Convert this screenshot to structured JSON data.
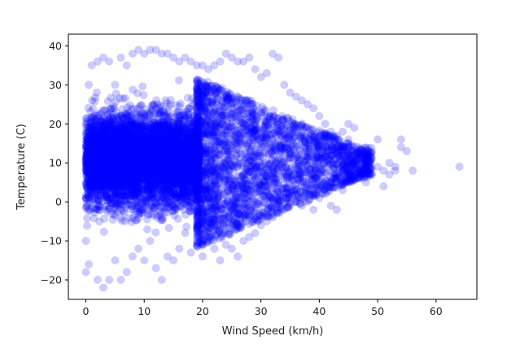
{
  "chart_data": {
    "type": "scatter",
    "title": "",
    "xlabel": "Wind Speed (km/h)",
    "ylabel": "Temperature (C)",
    "xlim": [
      -3,
      67
    ],
    "ylim": [
      -25,
      43
    ],
    "xticks": [
      0,
      10,
      20,
      30,
      40,
      50,
      60
    ],
    "yticks": [
      -20,
      -10,
      0,
      10,
      20,
      30,
      40
    ],
    "grid": false,
    "legend": "none",
    "marker_color": "#0000ff",
    "marker_alpha": 0.2,
    "series": [
      {
        "points": [
          [
            0,
            20
          ],
          [
            0,
            5
          ],
          [
            0,
            -10
          ],
          [
            0.5,
            30
          ],
          [
            0.5,
            -16
          ],
          [
            0,
            -18
          ],
          [
            1,
            35
          ],
          [
            2,
            36
          ],
          [
            3,
            37
          ],
          [
            4,
            36
          ],
          [
            2,
            -20
          ],
          [
            3,
            -22
          ],
          [
            4,
            -20
          ],
          [
            5,
            30
          ],
          [
            5,
            -15
          ],
          [
            6,
            37
          ],
          [
            6,
            -20
          ],
          [
            7,
            35
          ],
          [
            7,
            -18
          ],
          [
            8,
            38
          ],
          [
            8,
            -14
          ],
          [
            9,
            39
          ],
          [
            9,
            -12
          ],
          [
            10,
            38
          ],
          [
            10,
            -15
          ],
          [
            11,
            39
          ],
          [
            11,
            -10
          ],
          [
            12,
            39
          ],
          [
            12,
            -17
          ],
          [
            13,
            38
          ],
          [
            13,
            -20
          ],
          [
            14,
            38
          ],
          [
            14,
            -14
          ],
          [
            15,
            37
          ],
          [
            15,
            -15
          ],
          [
            16,
            36
          ],
          [
            16,
            -12
          ],
          [
            17,
            37
          ],
          [
            17,
            -8
          ],
          [
            18,
            36
          ],
          [
            18,
            -13
          ],
          [
            19,
            35
          ],
          [
            19,
            -10
          ],
          [
            20,
            35
          ],
          [
            20,
            -14
          ],
          [
            21,
            34
          ],
          [
            21,
            -10
          ],
          [
            22,
            35
          ],
          [
            22,
            -12
          ],
          [
            23,
            36
          ],
          [
            23,
            -15
          ],
          [
            24,
            38
          ],
          [
            24,
            -11
          ],
          [
            25,
            37
          ],
          [
            25,
            -12
          ],
          [
            26,
            36
          ],
          [
            26,
            -14
          ],
          [
            27,
            36
          ],
          [
            27,
            -10
          ],
          [
            28,
            37
          ],
          [
            28,
            -9
          ],
          [
            29,
            34
          ],
          [
            29,
            -8
          ],
          [
            30,
            32
          ],
          [
            30,
            -6
          ],
          [
            31,
            33
          ],
          [
            31,
            -5
          ],
          [
            32,
            38
          ],
          [
            32,
            -4
          ],
          [
            33,
            37
          ],
          [
            33,
            -3
          ],
          [
            34,
            30
          ],
          [
            34,
            -2
          ],
          [
            35,
            28
          ],
          [
            35,
            -1
          ],
          [
            36,
            27
          ],
          [
            36,
            0
          ],
          [
            37,
            26
          ],
          [
            37,
            -1
          ],
          [
            38,
            25
          ],
          [
            38,
            0
          ],
          [
            39,
            24
          ],
          [
            39,
            -2
          ],
          [
            40,
            22
          ],
          [
            40,
            1
          ],
          [
            41,
            20
          ],
          [
            41,
            2
          ],
          [
            42,
            18
          ],
          [
            42,
            -1
          ],
          [
            43,
            17
          ],
          [
            43,
            -2
          ],
          [
            44,
            18
          ],
          [
            44,
            3
          ],
          [
            45,
            20
          ],
          [
            45,
            16
          ],
          [
            46,
            19
          ],
          [
            46,
            6
          ],
          [
            47,
            12
          ],
          [
            47,
            8
          ],
          [
            48,
            10
          ],
          [
            48,
            5
          ],
          [
            49,
            11
          ],
          [
            49,
            7
          ],
          [
            50,
            16
          ],
          [
            50,
            9
          ],
          [
            51,
            4
          ],
          [
            51,
            8
          ],
          [
            52,
            7
          ],
          [
            52,
            10
          ],
          [
            53,
            9
          ],
          [
            53,
            8
          ],
          [
            54,
            14
          ],
          [
            54,
            16
          ],
          [
            55,
            13
          ],
          [
            56,
            8
          ],
          [
            64,
            9
          ]
        ]
      }
    ]
  }
}
